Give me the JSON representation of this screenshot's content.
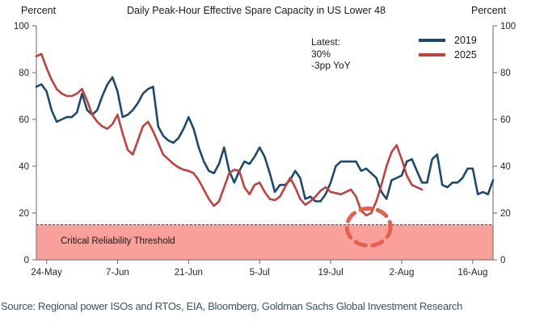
{
  "header": {
    "title": "Daily Peak-Hour Effective Spare Capacity in US Lower 48",
    "left_axis_label": "Percent",
    "right_axis_label": "Percent"
  },
  "annotation": {
    "line1": "Latest:",
    "line2": "30%",
    "line3": "-3pp YoY"
  },
  "legend": [
    {
      "label": "2019",
      "color": "#1c4a6e"
    },
    {
      "label": "2025",
      "color": "#c4403d"
    }
  ],
  "threshold": {
    "label": "Critical Reliability Threshold",
    "value": 15,
    "band_fill": "#f9a09b",
    "line_color": "#4d4d4d"
  },
  "highlight_circle": {
    "center_day": 65.5,
    "center_value": 14,
    "color": "#e7604e"
  },
  "source": "Source: Regional power ISOs and RTOs, EIA, Bloomberg, Goldman Sachs Global Investment Research",
  "chart_data": {
    "type": "line",
    "title": "Daily Peak-Hour Effective Spare Capacity in US Lower 48",
    "ylabel": "Percent",
    "ylim": [
      0,
      100
    ],
    "grid": false,
    "legend_position": "top-right",
    "x_axis": {
      "start_date": "22-May",
      "days_span": 90,
      "ticks": [
        {
          "label": "24-May",
          "day": 2
        },
        {
          "label": "7-Jun",
          "day": 16
        },
        {
          "label": "21-Jun",
          "day": 30
        },
        {
          "label": "5-Jul",
          "day": 44
        },
        {
          "label": "19-Jul",
          "day": 58
        },
        {
          "label": "2-Aug",
          "day": 72
        },
        {
          "label": "16-Aug",
          "day": 86
        }
      ]
    },
    "y_axis": {
      "min": 0,
      "max": 100,
      "ticks": [
        0,
        20,
        40,
        60,
        80,
        100
      ]
    },
    "series": [
      {
        "name": "2019",
        "color": "#1c4a6e",
        "start_day": 0,
        "values": [
          74,
          75,
          72,
          64,
          59,
          60,
          61,
          61,
          63,
          71,
          64,
          62,
          64,
          70,
          75,
          78,
          72,
          61,
          62,
          64,
          67,
          71,
          73,
          74,
          57,
          53,
          51,
          50,
          52,
          56,
          61,
          56,
          48,
          42,
          38,
          37,
          41,
          48,
          38,
          33,
          38,
          42,
          41,
          44,
          48,
          44,
          37,
          29,
          32,
          32,
          34,
          38,
          35,
          26,
          27,
          25,
          25,
          28,
          33,
          40,
          42,
          42,
          42,
          42,
          38,
          39,
          37,
          35,
          29,
          26,
          34,
          35,
          36,
          42,
          43,
          38,
          33,
          33,
          43,
          45,
          32,
          31,
          33,
          33,
          35,
          39,
          39,
          28,
          29,
          28,
          34
        ]
      },
      {
        "name": "2025",
        "color": "#c4403d",
        "start_day": 0,
        "values": [
          87,
          88,
          82,
          77,
          73,
          71,
          70,
          70,
          71,
          73,
          68,
          62,
          59,
          57,
          56,
          58,
          62,
          54,
          47,
          45,
          51,
          57,
          59,
          55,
          50,
          45,
          43,
          41,
          39.5,
          38.5,
          38,
          37,
          34,
          30,
          26,
          23,
          25,
          31,
          37,
          38.5,
          38,
          31,
          28,
          32,
          33,
          29,
          26,
          25.5,
          27,
          31,
          35,
          31,
          26,
          23.5,
          25,
          27,
          29.5,
          31,
          29,
          28.5,
          28,
          29,
          30,
          27,
          21,
          19,
          20,
          25,
          32,
          40,
          46,
          49,
          43,
          36,
          32,
          31,
          30
        ]
      }
    ]
  }
}
